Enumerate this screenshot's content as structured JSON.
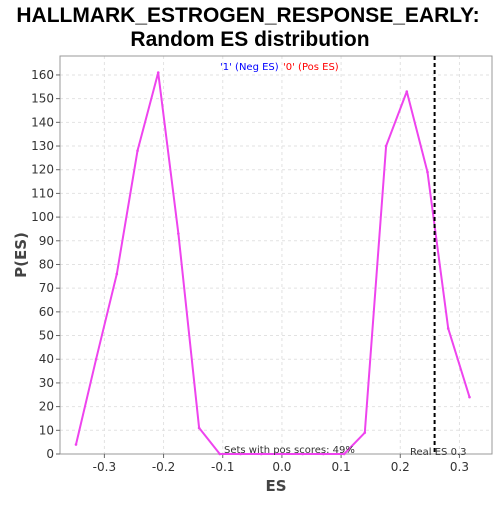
{
  "chart_data": {
    "type": "line",
    "title_line1": "HALLMARK_ESTROGEN_RESPONSE_EARLY:",
    "title_line2": "Random ES distribution",
    "xlabel": "ES",
    "ylabel": "P(ES)",
    "xlim": [
      -0.375,
      0.355
    ],
    "ylim": [
      0,
      168
    ],
    "x_ticks": [
      -0.3,
      -0.2,
      -0.1,
      0.0,
      0.1,
      0.2,
      0.3
    ],
    "x_tick_labels": [
      "-0.3",
      "-0.2",
      "-0.1",
      "0.0",
      "0.1",
      "0.2",
      "0.3"
    ],
    "y_ticks": [
      0,
      10,
      20,
      30,
      40,
      50,
      60,
      70,
      80,
      90,
      100,
      110,
      120,
      130,
      140,
      150,
      160
    ],
    "grid": true,
    "legend_placement": "top-center",
    "legend": [
      {
        "label": "'1' (Neg ES)",
        "color": "#0000ff"
      },
      {
        "label": "'0' (Pos ES)",
        "color": "#ff0000"
      }
    ],
    "series": [
      {
        "color": "#ee44ee",
        "x": [
          -0.348,
          -0.314,
          -0.279,
          -0.244,
          -0.209,
          -0.175,
          -0.14,
          -0.105,
          -0.07,
          -0.035,
          0.0,
          0.035,
          0.07,
          0.105,
          0.14,
          0.176,
          0.211,
          0.246,
          0.281,
          0.317
        ],
        "y": [
          4,
          40,
          76,
          128,
          161,
          93,
          11,
          0,
          0,
          0,
          0,
          0,
          0,
          0,
          9,
          130,
          153,
          119,
          53,
          24
        ]
      }
    ],
    "real_es": {
      "x": 0.258,
      "label": "Real ES 0.3",
      "color": "#000000"
    },
    "annotation": "Sets with pos scores: 49%"
  }
}
